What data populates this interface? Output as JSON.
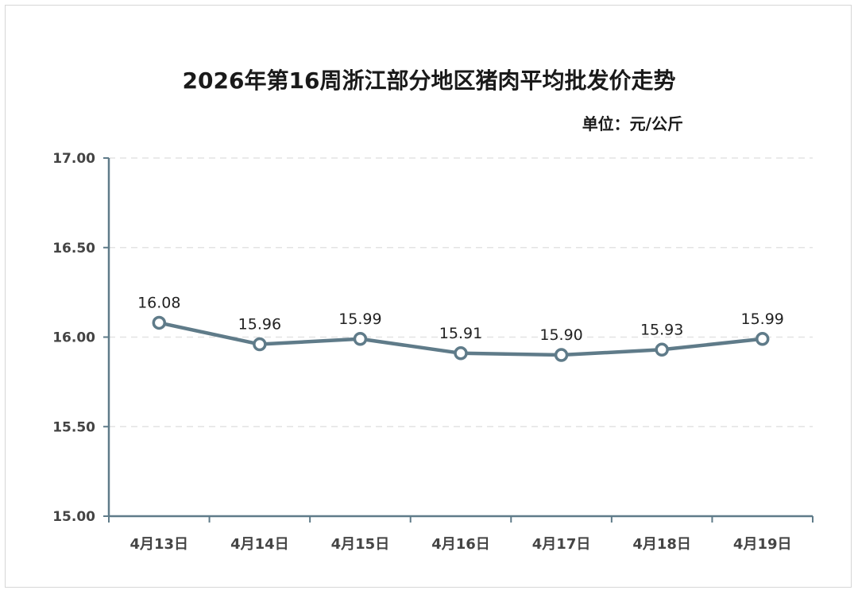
{
  "chart_data": {
    "type": "line",
    "title": "2026年第16周浙江部分地区猪肉平均批发价走势",
    "unit_label": "单位：元/公斤",
    "categories": [
      "4月13日",
      "4月14日",
      "4月15日",
      "4月16日",
      "4月17日",
      "4月18日",
      "4月19日"
    ],
    "values": [
      16.08,
      15.96,
      15.99,
      15.91,
      15.9,
      15.93,
      15.99
    ],
    "ylim": [
      15.0,
      17.0
    ],
    "yticks": [
      "15.00",
      "15.50",
      "16.00",
      "16.50",
      "17.00"
    ],
    "grid": true,
    "line_color": "#5f7b89",
    "grid_color": "#e3e3e3",
    "axis_color": "#5f7b89"
  }
}
